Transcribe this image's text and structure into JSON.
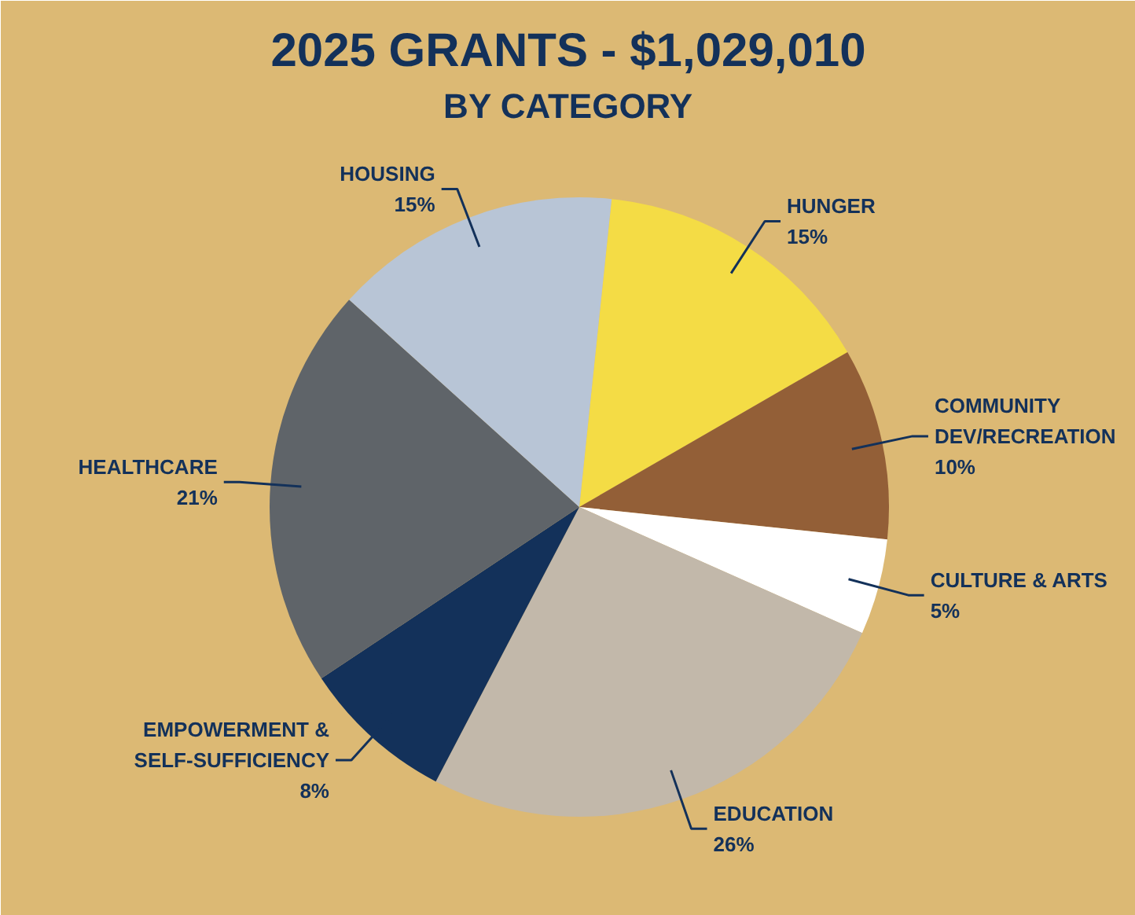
{
  "chart_data": {
    "type": "pie",
    "title": "2025 GRANTS - $1,029,010",
    "subtitle": "BY CATEGORY",
    "categories": [
      "HUNGER",
      "COMMUNITY\nDEV/RECREATION",
      "CULTURE & ARTS",
      "EDUCATION",
      "EMPOWERMENT &\nSELF-SUFFICIENCY",
      "HEALTHCARE",
      "HOUSING"
    ],
    "values": [
      15,
      10,
      5,
      26,
      8,
      21,
      15
    ],
    "value_labels": [
      "15%",
      "10%",
      "5%",
      "26%",
      "8%",
      "21%",
      "15%"
    ],
    "colors": [
      "#f4dc45",
      "#935f37",
      "#ffffff",
      "#c2b8aa",
      "#13315a",
      "#5f6469",
      "#b8c5d6"
    ]
  }
}
